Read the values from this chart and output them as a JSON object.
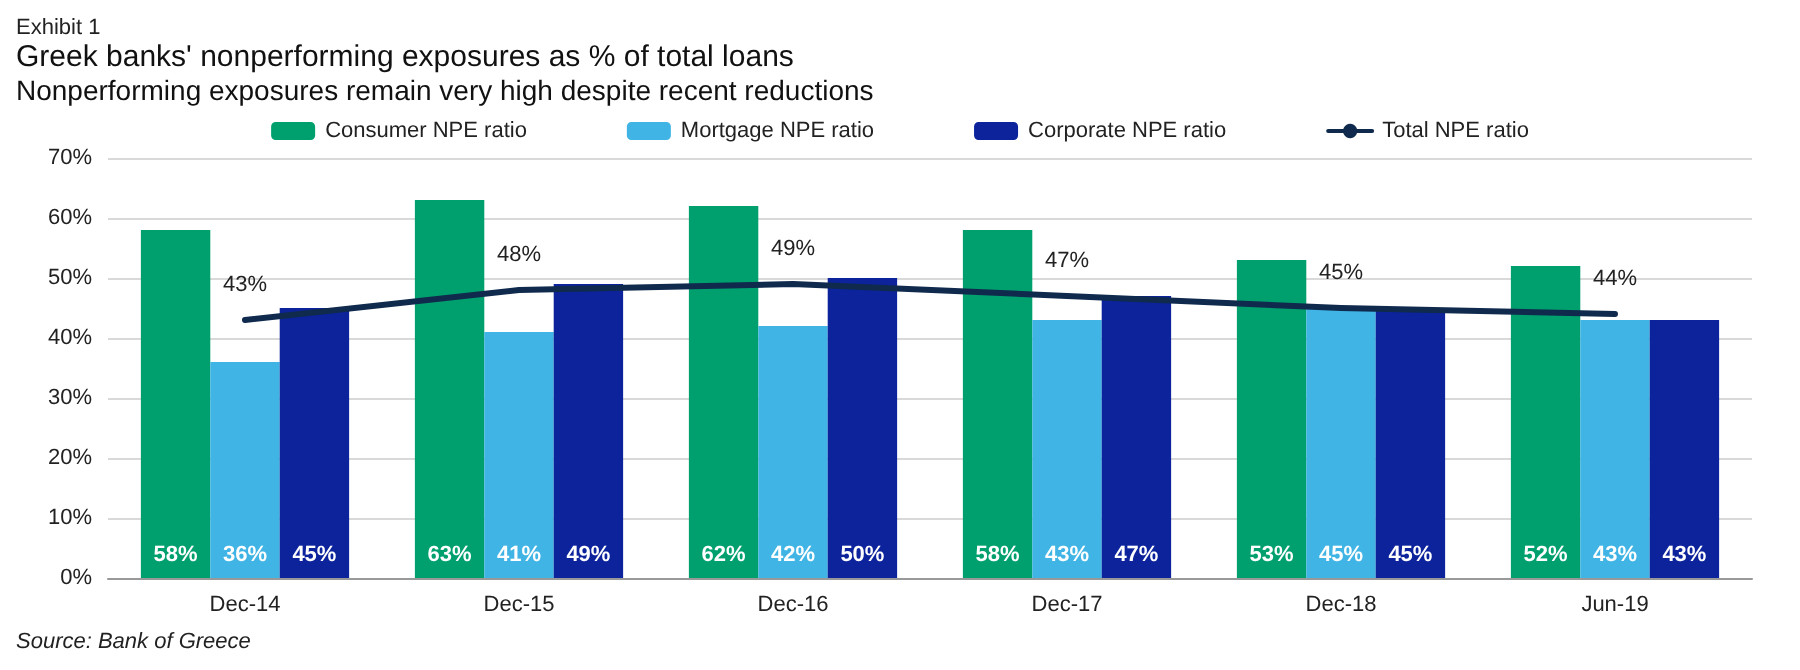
{
  "chart_data": {
    "type": "bar",
    "title": "Greek banks' nonperforming exposures as % of total loans",
    "subtitle": "Nonperforming exposures remain very high despite recent reductions",
    "annotations": [
      "Exhibit 1",
      "Source: Bank of Greece"
    ],
    "categories": [
      "Dec-14",
      "Dec-15",
      "Dec-16",
      "Dec-17",
      "Dec-18",
      "Jun-19"
    ],
    "series": [
      {
        "name": "Consumer NPE ratio",
        "color": "#00a06e",
        "values": [
          58,
          63,
          62,
          58,
          53,
          52
        ],
        "value_labels": [
          "58%",
          "63%",
          "62%",
          "58%",
          "53%",
          "52%"
        ]
      },
      {
        "name": "Mortgage NPE ratio",
        "color": "#3fb4e5",
        "values": [
          36,
          41,
          42,
          43,
          45,
          43
        ],
        "value_labels": [
          "36%",
          "41%",
          "42%",
          "43%",
          "45%",
          "43%"
        ]
      },
      {
        "name": "Corporate NPE ratio",
        "color": "#0c239c",
        "values": [
          45,
          49,
          50,
          47,
          45,
          43
        ],
        "value_labels": [
          "45%",
          "49%",
          "50%",
          "47%",
          "45%",
          "43%"
        ]
      },
      {
        "name": "Total NPE ratio",
        "type": "line",
        "color": "#0f2a4d",
        "marker": "none",
        "line_style": "solid",
        "values": [
          43,
          48,
          49,
          47,
          45,
          44
        ],
        "value_labels": [
          "43%",
          "48%",
          "49%",
          "47%",
          "45%",
          "44%"
        ]
      }
    ],
    "ylim": [
      0,
      70
    ],
    "yticks": [
      {
        "value": 0,
        "label": "0%"
      },
      {
        "value": 10,
        "label": "10%"
      },
      {
        "value": 20,
        "label": "20%"
      },
      {
        "value": 30,
        "label": "30%"
      },
      {
        "value": 40,
        "label": "40%"
      },
      {
        "value": 50,
        "label": "50%"
      },
      {
        "value": 60,
        "label": "60%"
      },
      {
        "value": 70,
        "label": "70%"
      }
    ],
    "grid": "y",
    "legend": "top"
  }
}
